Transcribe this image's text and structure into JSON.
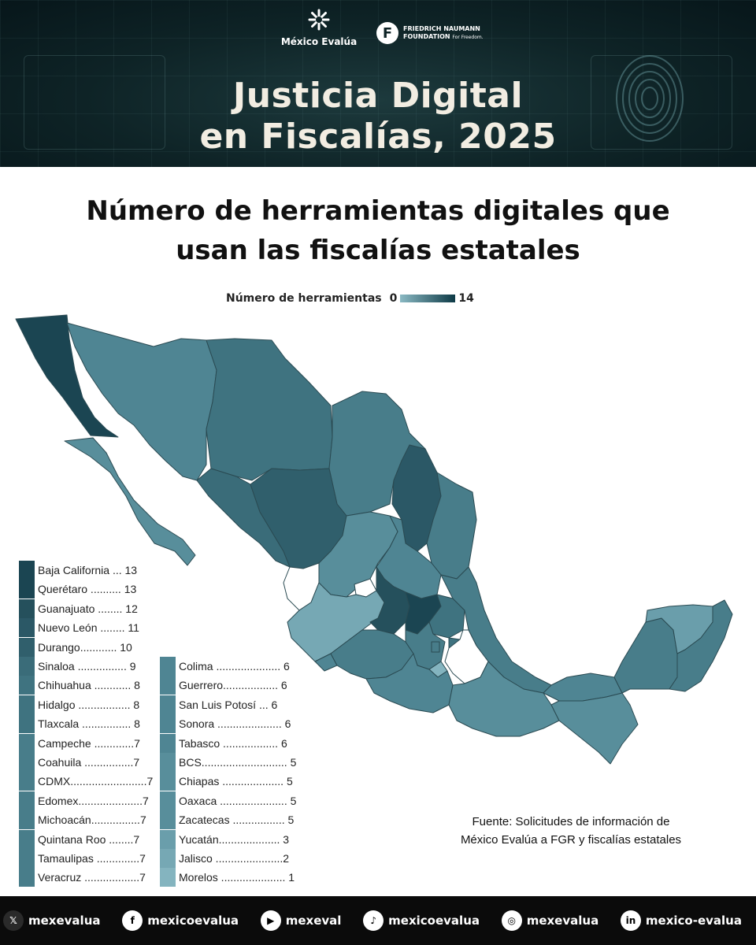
{
  "header": {
    "org1": "México Evalúa",
    "org2_line1": "FRIEDRICH NAUMANN",
    "org2_line2": "FOUNDATION",
    "org2_tagline": "For Freedom.",
    "title_line1": "Justicia Digital",
    "title_line2": "en Fiscalías, 2025"
  },
  "title": {
    "line1": "Número de herramientas digitales que",
    "line2": "usan las fiscalías estatales"
  },
  "scale": {
    "label": "Número de herramientas",
    "min": "0",
    "max": "14",
    "color_min": "#8ab9c3",
    "color_max": "#0e3a46"
  },
  "legend": {
    "col1": [
      {
        "label": "Baja California ... 13",
        "color": "#1b4552"
      },
      {
        "label": "Querétaro .......... 13",
        "color": "#1b4552"
      },
      {
        "label": "Guanajuato ........ 12",
        "color": "#25505c"
      },
      {
        "label": "Nuevo León ........ 11",
        "color": "#2b5866"
      },
      {
        "label": "Durango............ 10",
        "color": "#305f6c"
      },
      {
        "label": "Sinaloa ................ 9",
        "color": "#3a6c79"
      },
      {
        "label": "Chihuahua ............ 8",
        "color": "#3f7380"
      },
      {
        "label": "Hidalgo ................. 8",
        "color": "#3f7380"
      },
      {
        "label": "Tlaxcala ................ 8",
        "color": "#3f7380"
      },
      {
        "label": "Campeche .............7",
        "color": "#487d8a"
      },
      {
        "label": "Coahuila ................7",
        "color": "#487d8a"
      },
      {
        "label": "CDMX.........................7",
        "color": "#487d8a"
      },
      {
        "label": "Edomex.....................7",
        "color": "#487d8a"
      },
      {
        "label": "Michoacán................7",
        "color": "#487d8a"
      },
      {
        "label": "Quintana Roo ........7",
        "color": "#487d8a"
      },
      {
        "label": "Tamaulipas ..............7",
        "color": "#487d8a"
      },
      {
        "label": "Veracruz ..................7",
        "color": "#487d8a"
      }
    ],
    "col2": [
      {
        "label": "Colima ..................... 6",
        "color": "#4f8593"
      },
      {
        "label": "Guerrero.................. 6",
        "color": "#4f8593"
      },
      {
        "label": "San Luis Potosí ... 6",
        "color": "#4f8593"
      },
      {
        "label": "Sonora ..................... 6",
        "color": "#4f8593"
      },
      {
        "label": "Tabasco .................. 6",
        "color": "#4f8593"
      },
      {
        "label": "BCS............................ 5",
        "color": "#588e9b"
      },
      {
        "label": "Chiapas .................... 5",
        "color": "#588e9b"
      },
      {
        "label": "Oaxaca ...................... 5",
        "color": "#588e9b"
      },
      {
        "label": "Zacatecas ................. 5",
        "color": "#588e9b"
      },
      {
        "label": "Yucatán.................... 3",
        "color": "#6a9eab"
      },
      {
        "label": "Jalisco ......................2",
        "color": "#76a8b4"
      },
      {
        "label": "Morelos ..................... 1",
        "color": "#84b4bf"
      }
    ]
  },
  "map_data": {
    "states": [
      {
        "name": "Baja California",
        "value": 13
      },
      {
        "name": "Querétaro",
        "value": 13
      },
      {
        "name": "Guanajuato",
        "value": 12
      },
      {
        "name": "Nuevo León",
        "value": 11
      },
      {
        "name": "Durango",
        "value": 10
      },
      {
        "name": "Sinaloa",
        "value": 9
      },
      {
        "name": "Chihuahua",
        "value": 8
      },
      {
        "name": "Hidalgo",
        "value": 8
      },
      {
        "name": "Tlaxcala",
        "value": 8
      },
      {
        "name": "Campeche",
        "value": 7
      },
      {
        "name": "Coahuila",
        "value": 7
      },
      {
        "name": "CDMX",
        "value": 7
      },
      {
        "name": "Edomex",
        "value": 7
      },
      {
        "name": "Michoacán",
        "value": 7
      },
      {
        "name": "Quintana Roo",
        "value": 7
      },
      {
        "name": "Tamaulipas",
        "value": 7
      },
      {
        "name": "Veracruz",
        "value": 7
      },
      {
        "name": "Colima",
        "value": 6
      },
      {
        "name": "Guerrero",
        "value": 6
      },
      {
        "name": "San Luis Potosí",
        "value": 6
      },
      {
        "name": "Sonora",
        "value": 6
      },
      {
        "name": "Tabasco",
        "value": 6
      },
      {
        "name": "BCS",
        "value": 5
      },
      {
        "name": "Chiapas",
        "value": 5
      },
      {
        "name": "Oaxaca",
        "value": 5
      },
      {
        "name": "Zacatecas",
        "value": 5
      },
      {
        "name": "Yucatán",
        "value": 3
      },
      {
        "name": "Jalisco",
        "value": 2
      },
      {
        "name": "Morelos",
        "value": 1
      }
    ]
  },
  "source": {
    "line1": "Fuente: Solicitudes de información de",
    "line2": "México Evalúa a FGR y fiscalías estatales"
  },
  "footer": {
    "items": [
      {
        "icon": "x-icon",
        "glyph": "𝕏",
        "label": "mexevalua"
      },
      {
        "icon": "facebook-icon",
        "glyph": "f",
        "label": "mexicoevalua"
      },
      {
        "icon": "youtube-icon",
        "glyph": "▶",
        "label": "mexeval"
      },
      {
        "icon": "tiktok-icon",
        "glyph": "♪",
        "label": "mexicoevalua"
      },
      {
        "icon": "instagram-icon",
        "glyph": "◎",
        "label": "mexevalua"
      },
      {
        "icon": "linkedin-icon",
        "glyph": "in",
        "label": "mexico-evalua"
      }
    ]
  }
}
